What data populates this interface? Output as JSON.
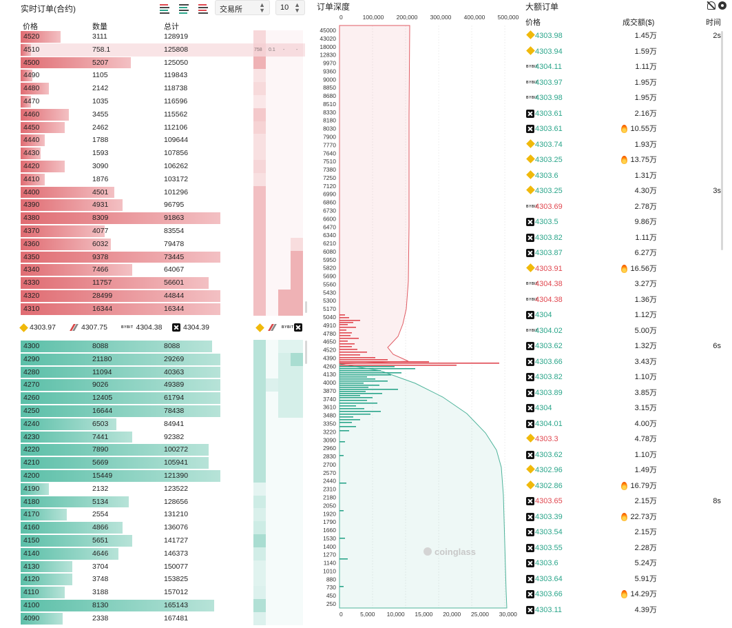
{
  "orderbook": {
    "title": "实时订单(合约)",
    "exchange_select": "交易所",
    "depth_select": "10",
    "headers": {
      "price": "价格",
      "qty": "数量",
      "total": "总计"
    },
    "highlight": {
      "v1": "758",
      "v2": "0.1",
      "v3": "-",
      "v4": "-"
    },
    "asks": [
      {
        "price": "4520",
        "qty": "3111",
        "total": "128919",
        "frac": 0.2,
        "ex": [
          0.32,
          0,
          0,
          0
        ]
      },
      {
        "price": "4510",
        "qty": "758.1",
        "total": "125808",
        "frac": 0.05,
        "ex": [
          0.08,
          0,
          0,
          0
        ]
      },
      {
        "price": "4500",
        "qty": "5207",
        "total": "125050",
        "frac": 0.55,
        "ex": [
          0.9,
          0,
          0,
          0
        ]
      },
      {
        "price": "4490",
        "qty": "1105",
        "total": "119843",
        "frac": 0.06,
        "ex": [
          0.15,
          0,
          0,
          0
        ]
      },
      {
        "price": "4480",
        "qty": "2142",
        "total": "118738",
        "frac": 0.14,
        "ex": [
          0.3,
          0,
          0,
          0
        ]
      },
      {
        "price": "4470",
        "qty": "1035",
        "total": "116596",
        "frac": 0.05,
        "ex": [
          0.1,
          0,
          0,
          0
        ]
      },
      {
        "price": "4460",
        "qty": "3455",
        "total": "115562",
        "frac": 0.24,
        "ex": [
          0.55,
          0,
          0,
          0
        ]
      },
      {
        "price": "4450",
        "qty": "2462",
        "total": "112106",
        "frac": 0.22,
        "ex": [
          0.4,
          0,
          0,
          0
        ]
      },
      {
        "price": "4440",
        "qty": "1788",
        "total": "109644",
        "frac": 0.12,
        "ex": [
          0.2,
          0,
          0,
          0
        ]
      },
      {
        "price": "4430",
        "qty": "1593",
        "total": "107856",
        "frac": 0.1,
        "ex": [
          0.2,
          0,
          0,
          0
        ]
      },
      {
        "price": "4420",
        "qty": "3090",
        "total": "106262",
        "frac": 0.22,
        "ex": [
          0.35,
          0,
          0,
          0
        ]
      },
      {
        "price": "4410",
        "qty": "1876",
        "total": "103172",
        "frac": 0.12,
        "ex": [
          0.2,
          0,
          0,
          0
        ]
      },
      {
        "price": "4400",
        "qty": "4501",
        "total": "101296",
        "frac": 0.47,
        "ex": [
          0.7,
          0,
          0,
          0
        ]
      },
      {
        "price": "4390",
        "qty": "4931",
        "total": "96795",
        "frac": 0.51,
        "ex": [
          0.7,
          0,
          0,
          0
        ]
      },
      {
        "price": "4380",
        "qty": "8309",
        "total": "91863",
        "frac": 1.0,
        "ex": [
          0.7,
          0,
          0,
          0
        ]
      },
      {
        "price": "4370",
        "qty": "4077",
        "total": "83554",
        "frac": 0.42,
        "ex": [
          0.7,
          0,
          0,
          0
        ]
      },
      {
        "price": "4360",
        "qty": "6032",
        "total": "79478",
        "frac": 0.45,
        "ex": [
          0.7,
          0,
          0,
          0.25
        ]
      },
      {
        "price": "4350",
        "qty": "9378",
        "total": "73445",
        "frac": 1.0,
        "ex": [
          0.7,
          0,
          0,
          0.9
        ]
      },
      {
        "price": "4340",
        "qty": "7466",
        "total": "64067",
        "frac": 0.56,
        "ex": [
          0.7,
          0,
          0,
          0.9
        ]
      },
      {
        "price": "4330",
        "qty": "11757",
        "total": "56601",
        "frac": 0.94,
        "ex": [
          0.7,
          0,
          0,
          0.9
        ]
      },
      {
        "price": "4320",
        "qty": "28499",
        "total": "44844",
        "frac": 1.0,
        "ex": [
          0.7,
          0,
          0.9,
          0.9
        ]
      },
      {
        "price": "4310",
        "qty": "16344",
        "total": "16344",
        "frac": 1.0,
        "ex": [
          0.7,
          0,
          0.9,
          0.9
        ]
      }
    ],
    "reference": [
      {
        "ex": "binance",
        "price": "4303.97"
      },
      {
        "ex": "okx",
        "price": "4307.75"
      },
      {
        "ex": "bybit",
        "price": "4304.38"
      },
      {
        "ex": "x",
        "price": "4304.39"
      }
    ],
    "bids": [
      {
        "price": "4300",
        "qty": "8088",
        "total": "8088",
        "frac": 0.96,
        "ex": [
          0.7,
          0,
          0.15,
          0.15
        ]
      },
      {
        "price": "4290",
        "qty": "21180",
        "total": "29269",
        "frac": 1.0,
        "ex": [
          0.7,
          0,
          0.3,
          0.9
        ]
      },
      {
        "price": "4280",
        "qty": "11094",
        "total": "40363",
        "frac": 1.0,
        "ex": [
          0.7,
          0,
          0.3,
          0.3
        ]
      },
      {
        "price": "4270",
        "qty": "9026",
        "total": "49389",
        "frac": 1.0,
        "ex": [
          0.7,
          0.2,
          0.3,
          0.3
        ]
      },
      {
        "price": "4260",
        "qty": "12405",
        "total": "61794",
        "frac": 1.0,
        "ex": [
          0.7,
          0,
          0.3,
          0.3
        ]
      },
      {
        "price": "4250",
        "qty": "16644",
        "total": "78438",
        "frac": 1.0,
        "ex": [
          0.7,
          0,
          0.3,
          0.3
        ]
      },
      {
        "price": "4240",
        "qty": "6503",
        "total": "84941",
        "frac": 0.48,
        "ex": [
          0.7,
          0,
          0,
          0
        ]
      },
      {
        "price": "4230",
        "qty": "7441",
        "total": "92382",
        "frac": 0.56,
        "ex": [
          0.7,
          0,
          0,
          0
        ]
      },
      {
        "price": "4220",
        "qty": "7890",
        "total": "100272",
        "frac": 0.94,
        "ex": [
          0.7,
          0,
          0,
          0
        ]
      },
      {
        "price": "4210",
        "qty": "5669",
        "total": "105941",
        "frac": 0.94,
        "ex": [
          0.7,
          0,
          0,
          0
        ]
      },
      {
        "price": "4200",
        "qty": "15449",
        "total": "121390",
        "frac": 1.0,
        "ex": [
          0.7,
          0,
          0,
          0
        ]
      },
      {
        "price": "4190",
        "qty": "2132",
        "total": "123522",
        "frac": 0.14,
        "ex": [
          0.1,
          0,
          0,
          0
        ]
      },
      {
        "price": "4180",
        "qty": "5134",
        "total": "128656",
        "frac": 0.54,
        "ex": [
          0.4,
          0,
          0,
          0
        ]
      },
      {
        "price": "4170",
        "qty": "2554",
        "total": "131210",
        "frac": 0.23,
        "ex": [
          0.25,
          0,
          0,
          0
        ]
      },
      {
        "price": "4160",
        "qty": "4866",
        "total": "136076",
        "frac": 0.51,
        "ex": [
          0.4,
          0,
          0,
          0
        ]
      },
      {
        "price": "4150",
        "qty": "5651",
        "total": "141727",
        "frac": 0.56,
        "ex": [
          0.9,
          0,
          0,
          0
        ]
      },
      {
        "price": "4140",
        "qty": "4646",
        "total": "146373",
        "frac": 0.49,
        "ex": [
          0.35,
          0,
          0,
          0
        ]
      },
      {
        "price": "4130",
        "qty": "3704",
        "total": "150077",
        "frac": 0.26,
        "ex": [
          0.15,
          0,
          0,
          0
        ]
      },
      {
        "price": "4120",
        "qty": "3748",
        "total": "153825",
        "frac": 0.26,
        "ex": [
          0.15,
          0,
          0,
          0
        ]
      },
      {
        "price": "4110",
        "qty": "3188",
        "total": "157012",
        "frac": 0.22,
        "ex": [
          0.2,
          0,
          0,
          0
        ]
      },
      {
        "price": "4100",
        "qty": "8130",
        "total": "165143",
        "frac": 0.97,
        "ex": [
          0.8,
          0,
          0,
          0
        ]
      },
      {
        "price": "4090",
        "qty": "2338",
        "total": "167481",
        "frac": 0.21,
        "ex": [
          0.2,
          0,
          0,
          0
        ]
      }
    ],
    "colors": {
      "ask": "#e06c72",
      "bid": "#5bbfa8"
    }
  },
  "depth": {
    "title": "订单深度",
    "top_axis": [
      "0",
      "100,000",
      "200,000",
      "300,000",
      "400,000",
      "500,000"
    ],
    "bottom_axis": [
      "0",
      "5,000",
      "10,000",
      "15,000",
      "20,000",
      "25,000",
      "30,000"
    ],
    "price_ticks": [
      "45000",
      "43020",
      "18000",
      "12830",
      "9970",
      "9360",
      "9000",
      "8850",
      "8680",
      "8510",
      "8330",
      "8180",
      "8030",
      "7900",
      "7770",
      "7640",
      "7510",
      "7380",
      "7250",
      "7120",
      "6990",
      "6860",
      "6730",
      "6600",
      "6470",
      "6340",
      "6210",
      "6080",
      "5950",
      "5820",
      "5690",
      "5560",
      "5430",
      "5300",
      "5170",
      "5040",
      "4910",
      "4780",
      "4650",
      "4520",
      "4390",
      "4260",
      "4130",
      "4000",
      "3870",
      "3740",
      "3610",
      "3480",
      "3350",
      "3220",
      "3090",
      "2960",
      "2830",
      "2700",
      "2570",
      "2440",
      "2310",
      "2180",
      "2050",
      "1920",
      "1790",
      "1660",
      "1530",
      "1400",
      "1270",
      "1140",
      "1010",
      "880",
      "730",
      "450",
      "250"
    ],
    "watermark": "coinglass"
  },
  "big_orders": {
    "title": "大额订单",
    "headers": {
      "price": "价格",
      "amount": "成交额($)",
      "time": "时间"
    },
    "rows": [
      {
        "ex": "binance",
        "price": "4303.98",
        "dir": "up",
        "amount": "1.45万",
        "fire": false,
        "time": "2s"
      },
      {
        "ex": "binance",
        "price": "4303.94",
        "dir": "up",
        "amount": "1.59万",
        "fire": false,
        "time": ""
      },
      {
        "ex": "bybit",
        "price": "4304.11",
        "dir": "up",
        "amount": "1.11万",
        "fire": false,
        "time": ""
      },
      {
        "ex": "bybit",
        "price": "4303.97",
        "dir": "up",
        "amount": "1.95万",
        "fire": false,
        "time": ""
      },
      {
        "ex": "bybit",
        "price": "4303.98",
        "dir": "up",
        "amount": "1.95万",
        "fire": false,
        "time": ""
      },
      {
        "ex": "x",
        "price": "4303.61",
        "dir": "up",
        "amount": "2.16万",
        "fire": false,
        "time": ""
      },
      {
        "ex": "x",
        "price": "4303.61",
        "dir": "up",
        "amount": "10.55万",
        "fire": true,
        "time": ""
      },
      {
        "ex": "binance",
        "price": "4303.74",
        "dir": "up",
        "amount": "1.93万",
        "fire": false,
        "time": ""
      },
      {
        "ex": "binance",
        "price": "4303.25",
        "dir": "up",
        "amount": "13.75万",
        "fire": true,
        "time": ""
      },
      {
        "ex": "binance",
        "price": "4303.6",
        "dir": "up",
        "amount": "1.31万",
        "fire": false,
        "time": ""
      },
      {
        "ex": "binance",
        "price": "4303.25",
        "dir": "up",
        "amount": "4.30万",
        "fire": false,
        "time": "3s"
      },
      {
        "ex": "bybit",
        "price": "4303.69",
        "dir": "dn",
        "amount": "2.78万",
        "fire": false,
        "time": ""
      },
      {
        "ex": "x",
        "price": "4303.5",
        "dir": "up",
        "amount": "9.86万",
        "fire": false,
        "time": ""
      },
      {
        "ex": "x",
        "price": "4303.82",
        "dir": "up",
        "amount": "1.11万",
        "fire": false,
        "time": ""
      },
      {
        "ex": "x",
        "price": "4303.87",
        "dir": "up",
        "amount": "6.27万",
        "fire": false,
        "time": ""
      },
      {
        "ex": "binance",
        "price": "4303.91",
        "dir": "dn",
        "amount": "16.56万",
        "fire": true,
        "time": ""
      },
      {
        "ex": "bybit",
        "price": "4304.38",
        "dir": "dn",
        "amount": "3.27万",
        "fire": false,
        "time": ""
      },
      {
        "ex": "bybit",
        "price": "4304.38",
        "dir": "dn",
        "amount": "1.36万",
        "fire": false,
        "time": ""
      },
      {
        "ex": "x",
        "price": "4304",
        "dir": "up",
        "amount": "1.12万",
        "fire": false,
        "time": ""
      },
      {
        "ex": "bybit",
        "price": "4304.02",
        "dir": "up",
        "amount": "5.00万",
        "fire": false,
        "time": ""
      },
      {
        "ex": "x",
        "price": "4303.62",
        "dir": "up",
        "amount": "1.32万",
        "fire": false,
        "time": "6s"
      },
      {
        "ex": "x",
        "price": "4303.66",
        "dir": "up",
        "amount": "3.43万",
        "fire": false,
        "time": ""
      },
      {
        "ex": "x",
        "price": "4303.82",
        "dir": "up",
        "amount": "1.10万",
        "fire": false,
        "time": ""
      },
      {
        "ex": "x",
        "price": "4303.89",
        "dir": "up",
        "amount": "3.85万",
        "fire": false,
        "time": ""
      },
      {
        "ex": "x",
        "price": "4304",
        "dir": "up",
        "amount": "3.15万",
        "fire": false,
        "time": ""
      },
      {
        "ex": "x",
        "price": "4304.01",
        "dir": "up",
        "amount": "4.00万",
        "fire": false,
        "time": ""
      },
      {
        "ex": "binance",
        "price": "4303.3",
        "dir": "dn",
        "amount": "4.78万",
        "fire": false,
        "time": ""
      },
      {
        "ex": "x",
        "price": "4303.62",
        "dir": "up",
        "amount": "1.10万",
        "fire": false,
        "time": ""
      },
      {
        "ex": "binance",
        "price": "4302.96",
        "dir": "up",
        "amount": "1.49万",
        "fire": false,
        "time": ""
      },
      {
        "ex": "binance",
        "price": "4302.86",
        "dir": "up",
        "amount": "16.79万",
        "fire": true,
        "time": ""
      },
      {
        "ex": "x",
        "price": "4303.65",
        "dir": "dn",
        "amount": "2.15万",
        "fire": false,
        "time": "8s"
      },
      {
        "ex": "x",
        "price": "4303.39",
        "dir": "up",
        "amount": "22.73万",
        "fire": true,
        "time": ""
      },
      {
        "ex": "x",
        "price": "4303.54",
        "dir": "up",
        "amount": "2.15万",
        "fire": false,
        "time": ""
      },
      {
        "ex": "x",
        "price": "4303.55",
        "dir": "up",
        "amount": "2.28万",
        "fire": false,
        "time": ""
      },
      {
        "ex": "x",
        "price": "4303.6",
        "dir": "up",
        "amount": "5.24万",
        "fire": false,
        "time": ""
      },
      {
        "ex": "x",
        "price": "4303.64",
        "dir": "up",
        "amount": "5.91万",
        "fire": false,
        "time": ""
      },
      {
        "ex": "x",
        "price": "4303.66",
        "dir": "up",
        "amount": "14.29万",
        "fire": true,
        "time": ""
      },
      {
        "ex": "x",
        "price": "4303.11",
        "dir": "up",
        "amount": "4.39万",
        "fire": false,
        "time": ""
      }
    ]
  }
}
